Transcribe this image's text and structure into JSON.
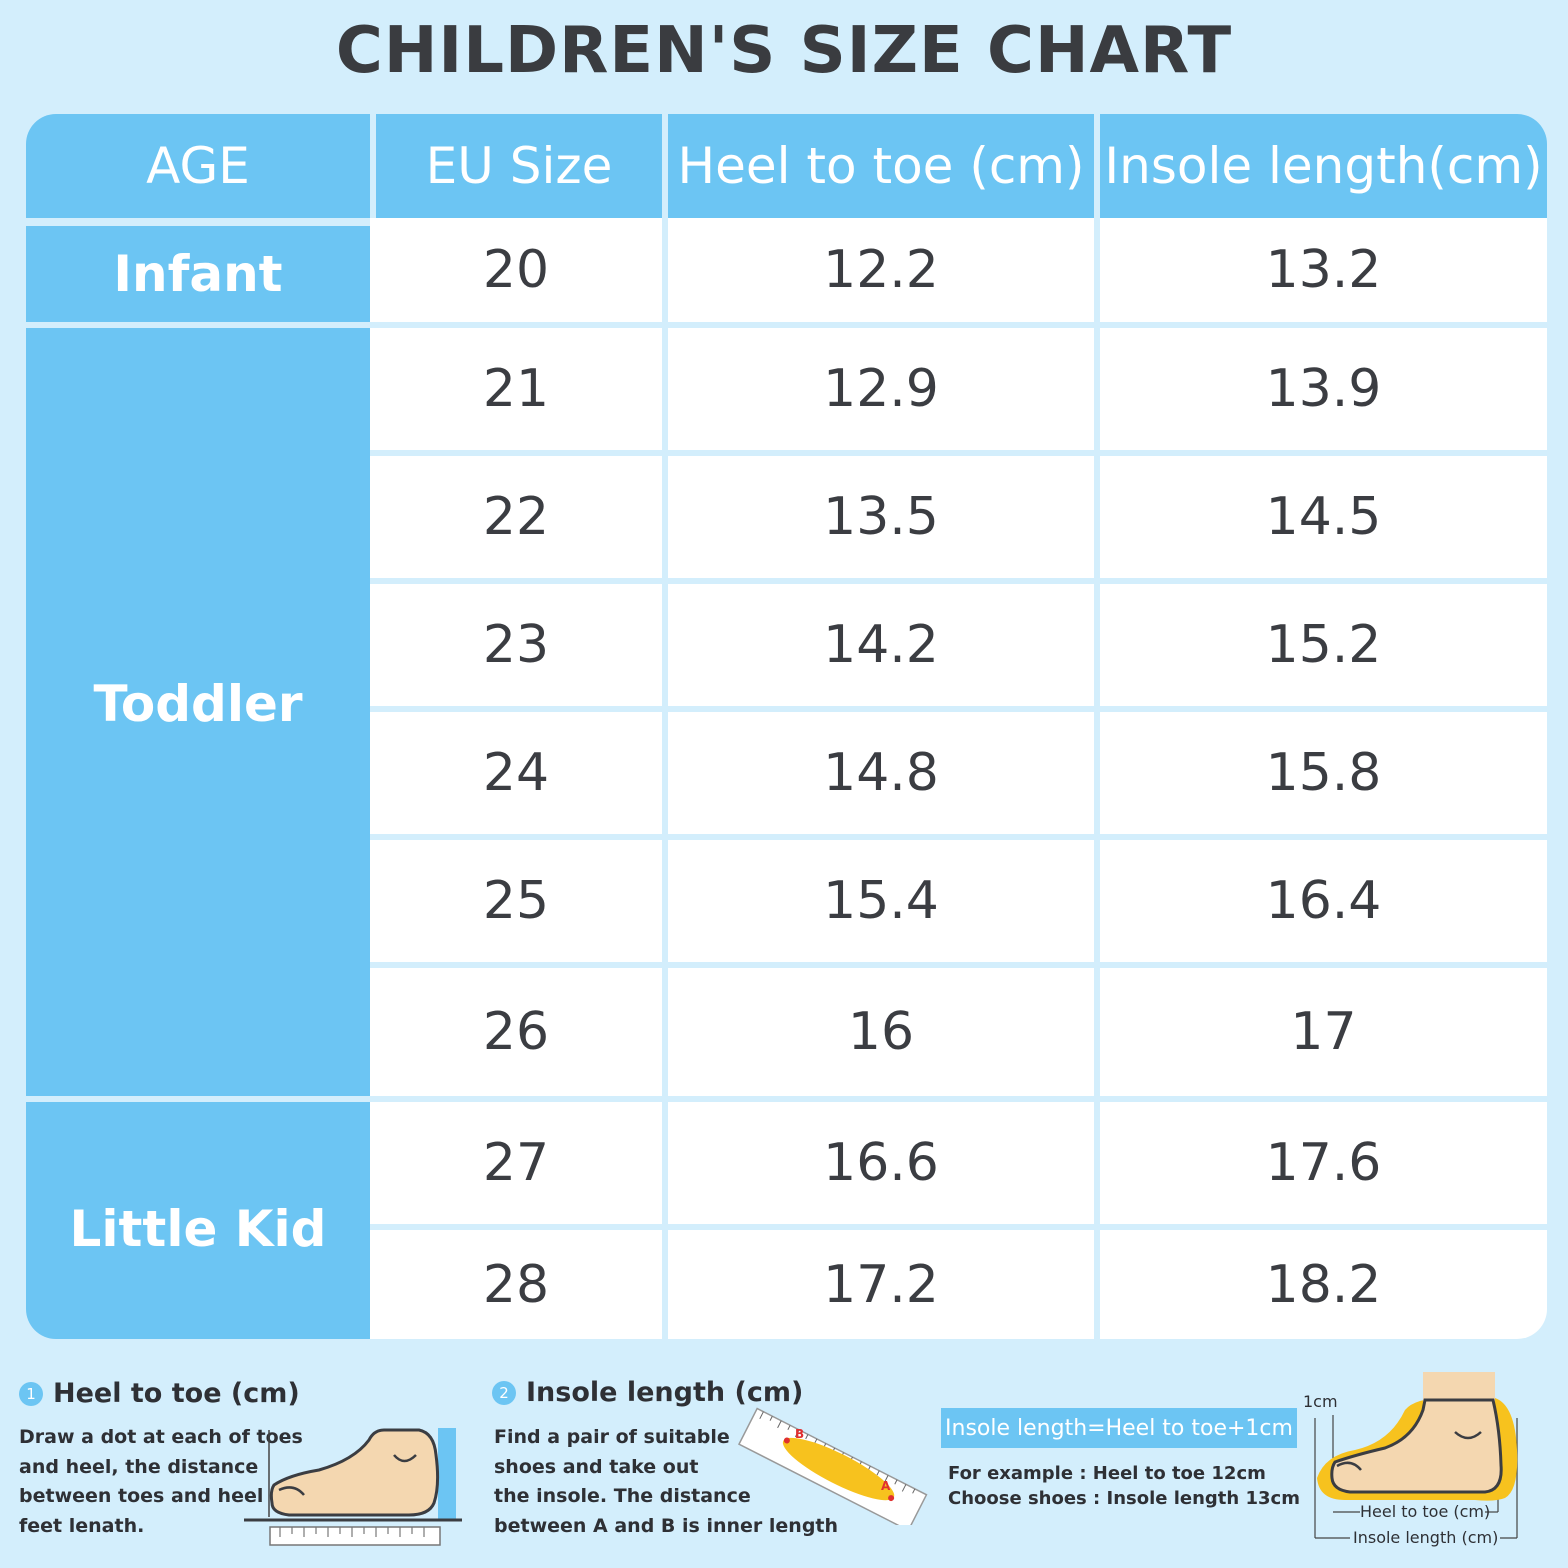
{
  "title": "CHILDREN'S SIZE CHART",
  "headers": [
    "AGE",
    "EU Size",
    "Heel to toe (cm)",
    "Insole length(cm)"
  ],
  "age_groups": [
    "Infant",
    "Toddler",
    "Little Kid"
  ],
  "rows": [
    {
      "eu": "20",
      "heel": "12.2",
      "insole": "13.2"
    },
    {
      "eu": "21",
      "heel": "12.9",
      "insole": "13.9"
    },
    {
      "eu": "22",
      "heel": "13.5",
      "insole": "14.5"
    },
    {
      "eu": "23",
      "heel": "14.2",
      "insole": "15.2"
    },
    {
      "eu": "24",
      "heel": "14.8",
      "insole": "15.8"
    },
    {
      "eu": "25",
      "heel": "15.4",
      "insole": "16.4"
    },
    {
      "eu": "26",
      "heel": "16",
      "insole": "17"
    },
    {
      "eu": "27",
      "heel": "16.6",
      "insole": "17.6"
    },
    {
      "eu": "28",
      "heel": "17.2",
      "insole": "18.2"
    }
  ],
  "guide": {
    "heel": {
      "number": "1",
      "title": "Heel to toe (cm)",
      "lines": [
        "Draw a dot at each of toes",
        "and heel, the distance",
        "between toes and heel is",
        "feet lenath."
      ]
    },
    "insole": {
      "number": "2",
      "title": "Insole length (cm)",
      "lines": [
        "Find a pair of suitable",
        "shoes and take out",
        "the insole. The distance",
        "between A and B is inner length"
      ],
      "point_a": "A",
      "point_b": "B"
    },
    "formula": "Insole length=Heel to toe+1cm",
    "example_lines": [
      "For example : Heel to toe 12cm",
      "Choose shoes : Insole length 13cm"
    ],
    "diagram": {
      "offset_label": "1cm",
      "heel_label": "Heel to toe (cm)",
      "insole_label": "Insole length (cm)"
    }
  },
  "colors": {
    "background": "#d3eefc",
    "header_blue": "#6cc5f3",
    "cell_white": "#ffffff",
    "text_dark": "#3b3d42",
    "skin": "#f4d7b0",
    "insole_yellow": "#f7c21e"
  }
}
